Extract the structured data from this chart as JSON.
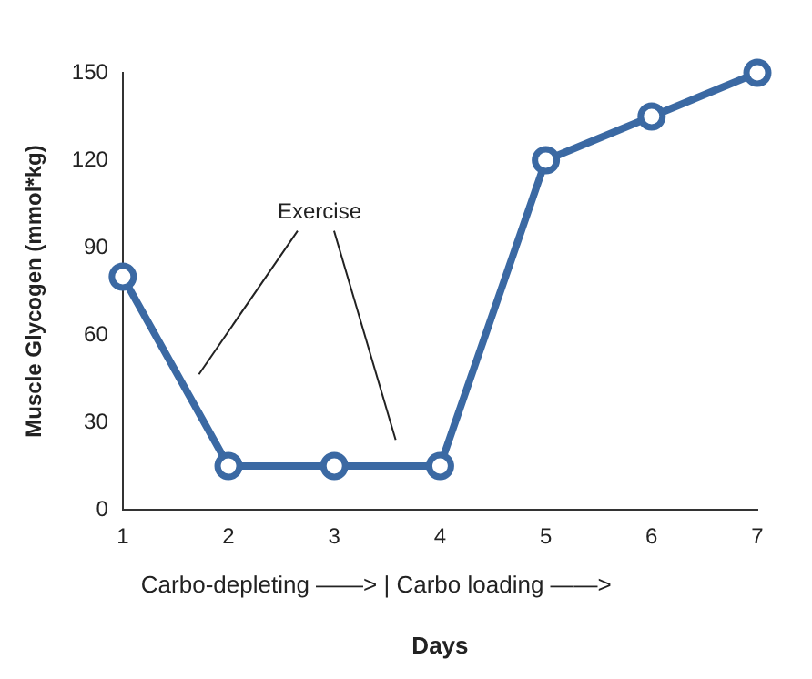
{
  "chart_data": {
    "type": "line",
    "xlabel": "Days",
    "ylabel": "Muscle Glycogen (mmol*kg)",
    "x": [
      1,
      2,
      3,
      4,
      5,
      6,
      7
    ],
    "series": [
      {
        "color": "#3b69a3",
        "values": [
          80,
          15,
          15,
          15,
          120,
          135,
          150
        ]
      }
    ],
    "xlim": [
      1,
      7
    ],
    "xticks": [
      1,
      2,
      3,
      4,
      5,
      6,
      7
    ],
    "ylim": [
      0,
      150
    ],
    "yticks": [
      0,
      30,
      60,
      90,
      120,
      150
    ],
    "grid": false,
    "legend": false,
    "marker": "circle",
    "line_style": "solid",
    "annotations": [
      "Exercise",
      "Carbo-depleting ——> | Carbo loading ——>"
    ]
  }
}
